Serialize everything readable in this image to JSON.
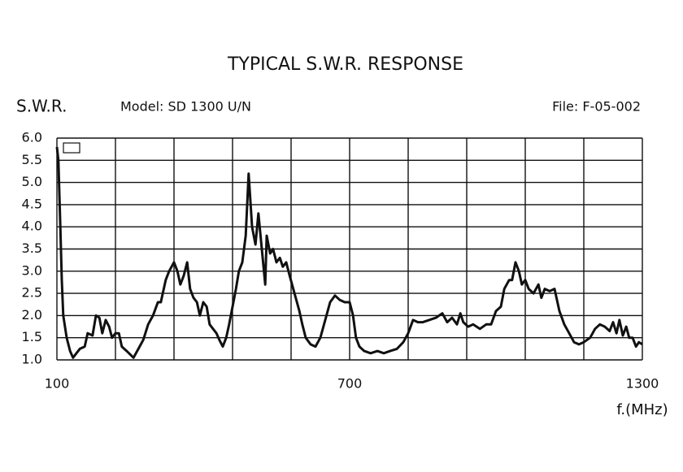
{
  "chart_data": {
    "type": "line",
    "title": "TYPICAL S.W.R. RESPONSE",
    "y_label": "S.W.R.",
    "model": "Model:  SD 1300 U/N",
    "file": "File:  F-05-002",
    "x_label": "f.(MHz)",
    "color": "#111111",
    "grid": true,
    "xlim": [
      100,
      1300
    ],
    "ylim": [
      1.0,
      6.0
    ],
    "xticks": [
      100,
      700,
      1300
    ],
    "xgrid": [
      220,
      340,
      460,
      580,
      820,
      940,
      1060,
      1180
    ],
    "yticks": [
      {
        "value": 1.0,
        "label": "1.0"
      },
      1.5,
      {
        "value": 2.0,
        "label": "2.0"
      },
      2.5,
      {
        "value": 3.0,
        "label": "3.0"
      },
      3.5,
      {
        "value": 4.0,
        "label": "4.0"
      },
      4.5,
      {
        "value": 5.0,
        "label": "5.0"
      },
      5.5,
      {
        "value": 6.0,
        "label": "6.0"
      }
    ],
    "x": [
      100,
      103,
      107,
      110,
      113,
      120,
      127,
      133,
      140,
      147,
      157,
      163,
      173,
      180,
      187,
      193,
      200,
      207,
      213,
      220,
      227,
      233,
      243,
      257,
      267,
      277,
      287,
      297,
      307,
      313,
      323,
      330,
      340,
      347,
      353,
      360,
      367,
      373,
      380,
      387,
      393,
      400,
      407,
      413,
      420,
      427,
      433,
      440,
      447,
      453,
      460,
      467,
      473,
      480,
      487,
      493,
      500,
      507,
      513,
      520,
      527,
      530,
      537,
      543,
      550,
      557,
      563,
      570,
      577,
      587,
      597,
      603,
      610,
      620,
      630,
      640,
      650,
      660,
      670,
      680,
      690,
      700,
      707,
      713,
      720,
      730,
      743,
      757,
      770,
      783,
      797,
      810,
      820,
      830,
      840,
      850,
      863,
      877,
      890,
      900,
      910,
      920,
      927,
      933,
      943,
      953,
      967,
      980,
      990,
      1000,
      1010,
      1017,
      1027,
      1033,
      1040,
      1047,
      1053,
      1060,
      1067,
      1077,
      1087,
      1093,
      1100,
      1110,
      1120,
      1130,
      1140,
      1150,
      1160,
      1170,
      1180,
      1193,
      1203,
      1213,
      1223,
      1233,
      1240,
      1247,
      1253,
      1260,
      1267,
      1273,
      1280,
      1287,
      1293,
      1300
    ],
    "values": [
      5.8,
      5.5,
      4.0,
      2.8,
      2.0,
      1.5,
      1.2,
      1.05,
      1.15,
      1.25,
      1.3,
      1.6,
      1.55,
      2.0,
      1.95,
      1.6,
      1.9,
      1.75,
      1.5,
      1.6,
      1.6,
      1.3,
      1.2,
      1.05,
      1.25,
      1.45,
      1.8,
      2.0,
      2.3,
      2.3,
      2.8,
      3.0,
      3.2,
      3.0,
      2.7,
      2.9,
      3.2,
      2.6,
      2.4,
      2.3,
      2.0,
      2.3,
      2.2,
      1.8,
      1.7,
      1.6,
      1.45,
      1.3,
      1.5,
      1.8,
      2.2,
      2.6,
      3.0,
      3.2,
      3.8,
      5.2,
      4.0,
      3.6,
      4.3,
      3.5,
      2.7,
      3.8,
      3.4,
      3.5,
      3.2,
      3.3,
      3.1,
      3.2,
      2.9,
      2.5,
      2.1,
      1.8,
      1.5,
      1.35,
      1.3,
      1.5,
      1.9,
      2.3,
      2.45,
      2.35,
      2.3,
      2.3,
      2.0,
      1.5,
      1.3,
      1.2,
      1.15,
      1.2,
      1.15,
      1.2,
      1.25,
      1.4,
      1.6,
      1.9,
      1.85,
      1.85,
      1.9,
      1.95,
      2.05,
      1.85,
      1.95,
      1.8,
      2.05,
      1.85,
      1.75,
      1.8,
      1.7,
      1.8,
      1.8,
      2.1,
      2.2,
      2.6,
      2.8,
      2.8,
      3.2,
      3.0,
      2.7,
      2.8,
      2.6,
      2.5,
      2.7,
      2.4,
      2.6,
      2.55,
      2.6,
      2.1,
      1.8,
      1.6,
      1.4,
      1.35,
      1.4,
      1.5,
      1.7,
      1.8,
      1.75,
      1.65,
      1.85,
      1.6,
      1.9,
      1.55,
      1.75,
      1.5,
      1.5,
      1.3,
      1.4,
      1.35
    ]
  }
}
